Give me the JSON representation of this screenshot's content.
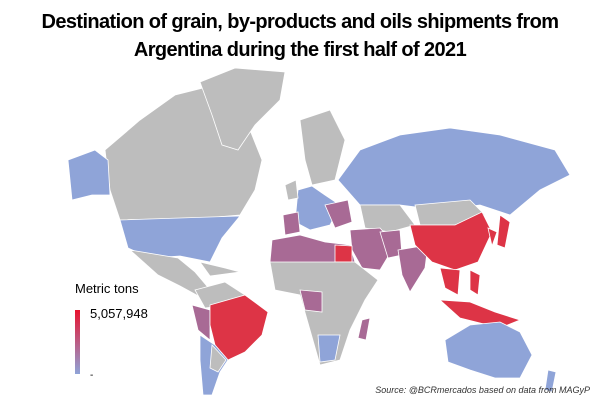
{
  "title_lines": [
    "Destination of grain, by-products and oils shipments from",
    "Argentina during the first half of 2021"
  ],
  "legend": {
    "title": "Metric tons",
    "max_label": "5,057,948",
    "min_label": "-"
  },
  "source": "Source: @BCRmercados based on data from MAGyP"
}
